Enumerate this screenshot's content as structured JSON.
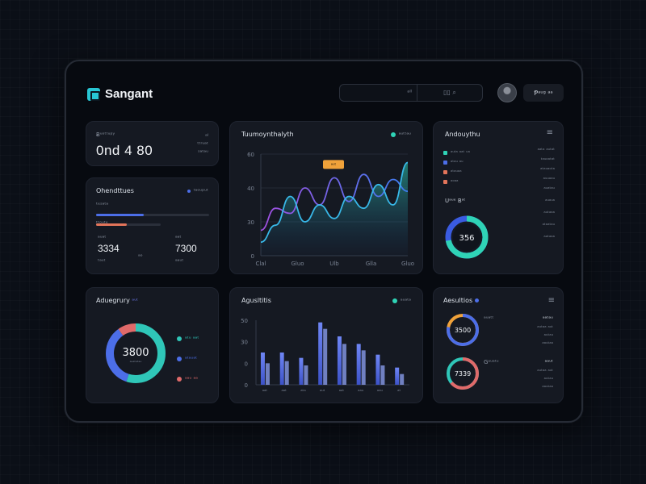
{
  "header": {
    "brand": "Sangant",
    "search_text": "ᵃˡˡ",
    "search_icons": "▯▯  ⌕",
    "user_label": "Ᵽᵃᵘᵍ ᵃᵃ"
  },
  "kpi": {
    "label": "Ƀᵘᵒᵗᵗᵘᵖʸ",
    "badge_top": "ᵃˡ",
    "badge_mid": "ᵗᵗʳᵘᵃᵗ",
    "badge_bottom": "ˢᵃᵗᵃᵘ",
    "value": "0nd 4 80"
  },
  "overview": {
    "title": "Ohendttues",
    "legend": "ᵗᵃᵒᵘᵖᵘᵗ",
    "row1_label": "ᵗᵉˢᵃᵗᵃ",
    "row2_label": "ᵗᵗᵒᵘᵗᵉ",
    "bar1_pct": 0.42,
    "bar2_pct": 0.48,
    "left_label": "ᵃᵘᵃᵗ",
    "right_label": "ᵃᵃᵗ",
    "left_value": "3334",
    "right_value": "7300",
    "left_sub": "ᵗᵃᵘᵗ",
    "right_sub": "ᵃᵃᵘᵗ",
    "mid_sub": "ᵃᵒ"
  },
  "trend": {
    "title": "Tuumoynthalyth",
    "legend": "ᵃᵘᵗᵗᵃᵘ",
    "tooltip": "ᵃᵘᵗ",
    "yticks": [
      "60",
      "40",
      "30",
      "0"
    ],
    "xticks": [
      "Clal",
      "Gluo",
      "Ulb",
      "Glla",
      "Gluo"
    ]
  },
  "right_panel": {
    "title": "Andouythu",
    "menu_icon": "≡",
    "legend_rows": [
      "ᵃᵘᵗᵃ ᵃᵃᵗ ᵘᵃ",
      "ᵃᵗᵃᵘ ᵃᵘ",
      "ᵃᵗᵃᵘᵃᵃ",
      "ᵃᵒᵃᵃ"
    ],
    "right_rows": [
      "ᵃᵃᵗᵃ ᵃᵘᵗᵃᵗ",
      "ᵗᵃᵘᵒᵃᵗᵃᵗ",
      "ᵃᵗᵃᵘᵃᵒᵗᵃ",
      "ᵃᵘᵘᵃᵃᵘ",
      "ᵃᵘᵃᵗᵃᵘ",
      "ᵃᵘᵃᵘᵃ",
      "ᵃᵘᵗᵃᵃᵃ",
      "ᵃᵗᵃᵃᵗᵃᵘ",
      "ᵃᵒᵗᵃᵃᵃ"
    ],
    "sub_title": "Uᵃᵘᵉ Bᵃᵗ",
    "donut_value": "356",
    "donut_fill": 0.72
  },
  "activity": {
    "title": "Aduegrury",
    "tag": "ᵃᵘᵗ",
    "donut_value": "3800",
    "donut_sub": "ᵃᵘᵃᵗᵃᵗᵃᵘ",
    "legend": [
      {
        "label": "ᵃᵗᵘ ᵃᵃᵗ",
        "color": "#2fc6b8"
      },
      {
        "label": "ᵃᵗᵃᵘᵃᵗ",
        "color": "#4c6ee8"
      },
      {
        "label": "ᵃᵃᵘ ᵃᵃ",
        "color": "#e06a6a"
      }
    ],
    "segments": [
      0.55,
      0.35,
      0.1
    ]
  },
  "bars_card": {
    "title": "Agusltitis",
    "legend": "ᵃᵘᵃᵗᵃ",
    "yticks": [
      "50",
      "30",
      "0",
      "0"
    ],
    "xticks": [
      "ᵃᵃᵗ",
      "ᵃᵃᵗ",
      "ᵃᵗᵃ",
      "ᵃᵘᵗ",
      "ᵃᵃᵗ",
      "ᵃᵃᵘ",
      "ᵃᵃᵘ",
      "ᵃᵗ"
    ]
  },
  "chart_data": {
    "type": "bar",
    "categories": [
      "1",
      "2",
      "3",
      "4",
      "5",
      "6",
      "7",
      "8"
    ],
    "series": [
      {
        "values": [
          30,
          30,
          25,
          58,
          45,
          38,
          28,
          16
        ]
      },
      {
        "values": [
          20,
          22,
          18,
          52,
          38,
          32,
          18,
          10
        ]
      }
    ],
    "ylim": [
      0,
      60
    ]
  },
  "trend_chart_data": {
    "type": "area",
    "x": [
      0,
      1,
      2,
      3,
      4,
      5,
      6,
      7,
      8,
      9,
      10
    ],
    "series": [
      {
        "values": [
          8,
          18,
          35,
          20,
          30,
          22,
          35,
          28,
          42,
          30,
          55
        ]
      },
      {
        "values": [
          15,
          28,
          25,
          40,
          30,
          46,
          32,
          48,
          35,
          45,
          38
        ]
      }
    ],
    "ylim": [
      0,
      60
    ]
  },
  "rings": {
    "title": "Aesultios",
    "top": {
      "value": "3500",
      "label": "ᵃᵘᵃᵗᵗ",
      "right": "ᵃᵃᵗᵃᵘ",
      "rows": [
        "ᵃᵘᵗᵃᵃ ᵃᵘᵗ",
        "ᵃᵘᵗᵃᵘ",
        "ᵃᵃᵘᵗᵃᵃ"
      ],
      "fill": 0.78
    },
    "bottom": {
      "value": "7339",
      "label": "Gᵃᵘᵃᵗᵘ",
      "right": "ᵃᵃᵘᵗ",
      "rows": [
        "ᵃᵘᵗᵃᵃ ᵃᵘᵗ",
        "ᵃᵘᵗᵃᵘ",
        "ᵃᵃᵘᵗᵃᵃ"
      ],
      "fill": 0.64
    }
  },
  "colors": {
    "accent_cyan": "#28c6d4",
    "accent_blue": "#4c6ee8",
    "accent_purple": "#8a5cf0",
    "accent_orange": "#f0a23a",
    "accent_red": "#e06a6a"
  }
}
